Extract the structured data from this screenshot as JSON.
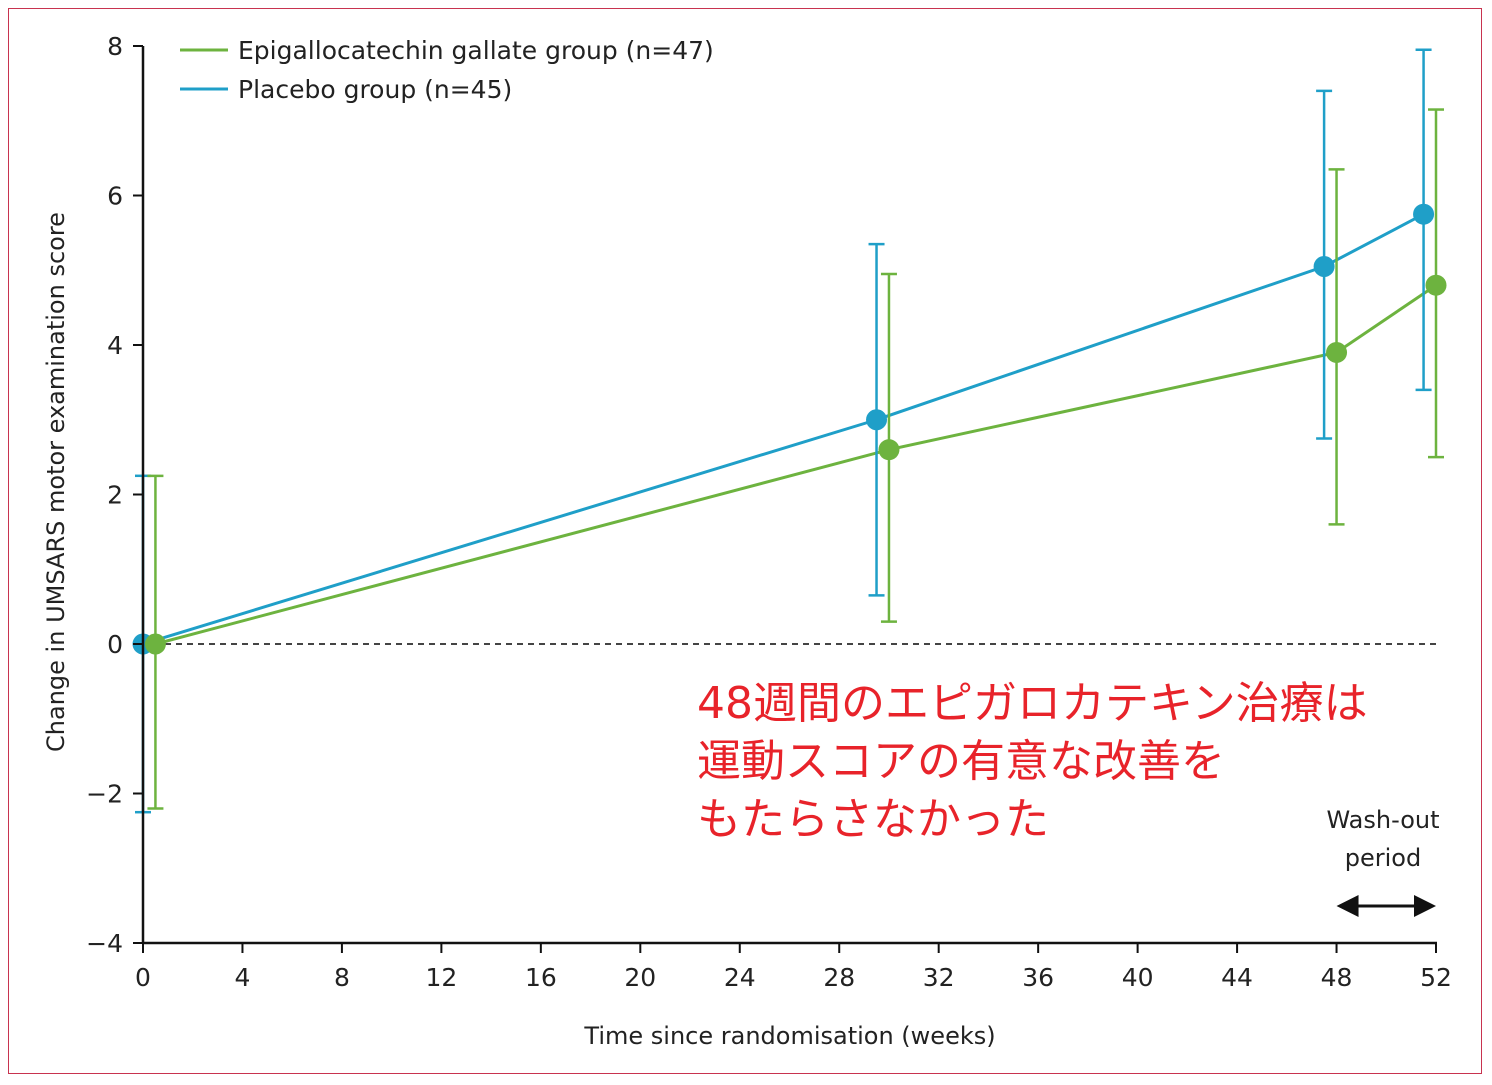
{
  "chart_data": {
    "type": "line",
    "xlabel": "Time since randomisation (weeks)",
    "ylabel": "Change in UMSARS motor examination score",
    "xlim": [
      0,
      52
    ],
    "ylim": [
      -4,
      8
    ],
    "x_ticks": [
      0,
      4,
      8,
      12,
      16,
      20,
      24,
      28,
      32,
      36,
      40,
      44,
      48,
      52
    ],
    "y_ticks": [
      -4,
      -2,
      0,
      2,
      4,
      6,
      8
    ],
    "x_tick_labels": [
      "0",
      "4",
      "8",
      "12",
      "16",
      "20",
      "24",
      "28",
      "32",
      "36",
      "40",
      "44",
      "48",
      "52"
    ],
    "y_tick_labels": [
      "−4",
      "−2",
      "0",
      "2",
      "4",
      "6",
      "8"
    ],
    "reference_line": {
      "y": 0,
      "style": "dashed"
    },
    "legend_position": "top-left",
    "series": [
      {
        "name": "Epigallocatechin gallate group (n=47)",
        "color": "#6db33f",
        "points": [
          {
            "x": 0.5,
            "y": 0.0,
            "lower": -2.2,
            "upper": 2.25
          },
          {
            "x": 30.0,
            "y": 2.6,
            "lower": 0.3,
            "upper": 4.95
          },
          {
            "x": 48.0,
            "y": 3.9,
            "lower": 1.6,
            "upper": 6.35
          },
          {
            "x": 52.0,
            "y": 4.8,
            "lower": 2.5,
            "upper": 7.15
          }
        ]
      },
      {
        "name": "Placebo group (n=45)",
        "color": "#1f9fc8",
        "points": [
          {
            "x": 0.0,
            "y": 0.0,
            "lower": -2.25,
            "upper": 2.25
          },
          {
            "x": 29.5,
            "y": 3.0,
            "lower": 0.65,
            "upper": 5.35
          },
          {
            "x": 47.5,
            "y": 5.05,
            "lower": 2.75,
            "upper": 7.4
          },
          {
            "x": 51.5,
            "y": 5.75,
            "lower": 3.4,
            "upper": 7.95
          }
        ]
      }
    ],
    "annotations": {
      "washout_label_1": "Wash-out",
      "washout_label_2": "period",
      "washout_range": [
        48,
        52
      ]
    }
  },
  "note": {
    "line1": "48週間のエピガロカテキン治療は",
    "line2": "運動スコアの有意な改善を",
    "line3": "もたらさなかった"
  },
  "colors": {
    "border": "#c8334f",
    "note": "#e8232a",
    "axis": "#111111",
    "reference": "#444444"
  }
}
